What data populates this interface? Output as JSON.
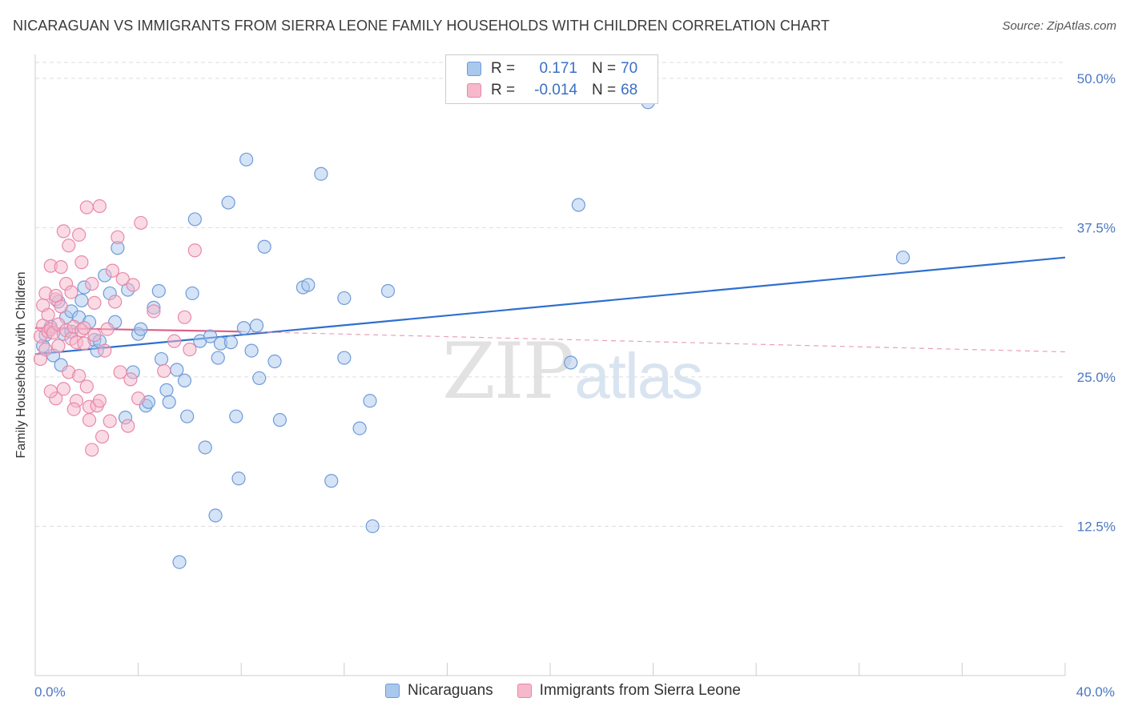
{
  "title": "NICARAGUAN VS IMMIGRANTS FROM SIERRA LEONE FAMILY HOUSEHOLDS WITH CHILDREN CORRELATION CHART",
  "source": "Source: ZipAtlas.com",
  "watermark": {
    "zip": "ZIP",
    "atlas": "atlas"
  },
  "legend": {
    "rows": [
      {
        "r_label": "R =",
        "r_value": "0.171",
        "n_label": "N =",
        "n_value": "70",
        "color": "#a9c8ee",
        "border": "#6f9bd8"
      },
      {
        "r_label": "R =",
        "r_value": "-0.014",
        "n_label": "N =",
        "n_value": "68",
        "color": "#f6b8cb",
        "border": "#e889a8"
      }
    ]
  },
  "bottom_legend": [
    {
      "label": "Nicaraguans",
      "color": "#a9c8ee",
      "border": "#6f9bd8"
    },
    {
      "label": "Immigrants from Sierra Leone",
      "color": "#f6b8cb",
      "border": "#e889a8"
    }
  ],
  "chart_data": {
    "type": "scatter",
    "title": "NICARAGUAN VS IMMIGRANTS FROM SIERRA LEONE FAMILY HOUSEHOLDS WITH CHILDREN CORRELATION CHART",
    "xlabel": "",
    "ylabel": "Family Households with Children",
    "xlim": [
      0,
      40
    ],
    "ylim": [
      0,
      52
    ],
    "x_tick_labels": [
      {
        "value": 0,
        "label": "0.0%"
      },
      {
        "value": 40,
        "label": "40.0%"
      }
    ],
    "y_tick_labels": [
      {
        "value": 12.5,
        "label": "12.5%"
      },
      {
        "value": 25.0,
        "label": "25.0%"
      },
      {
        "value": 37.5,
        "label": "37.5%"
      },
      {
        "value": 50.0,
        "label": "50.0%"
      }
    ],
    "grid": true,
    "series": [
      {
        "name": "Nicaraguans",
        "color": "#a9c8ee",
        "stroke": "#6f9bd8",
        "trend": {
          "x": [
            0,
            40
          ],
          "y": [
            26.9,
            35.0
          ],
          "color": "#2f6fcf",
          "dashed": false
        },
        "points": [
          {
            "x": 0.3,
            "y": 27.6
          },
          {
            "x": 0.4,
            "y": 28.5
          },
          {
            "x": 0.6,
            "y": 29.2
          },
          {
            "x": 0.7,
            "y": 26.8
          },
          {
            "x": 0.9,
            "y": 31.3
          },
          {
            "x": 1.0,
            "y": 26.0
          },
          {
            "x": 1.1,
            "y": 28.6
          },
          {
            "x": 1.2,
            "y": 30.0
          },
          {
            "x": 1.4,
            "y": 30.5
          },
          {
            "x": 1.4,
            "y": 28.8
          },
          {
            "x": 1.7,
            "y": 30.0
          },
          {
            "x": 1.8,
            "y": 31.4
          },
          {
            "x": 1.9,
            "y": 32.5
          },
          {
            "x": 2.1,
            "y": 29.6
          },
          {
            "x": 2.3,
            "y": 28.1
          },
          {
            "x": 2.4,
            "y": 27.2
          },
          {
            "x": 2.5,
            "y": 28.0
          },
          {
            "x": 2.7,
            "y": 33.5
          },
          {
            "x": 2.9,
            "y": 32.0
          },
          {
            "x": 3.1,
            "y": 29.6
          },
          {
            "x": 3.2,
            "y": 35.8
          },
          {
            "x": 3.5,
            "y": 21.6
          },
          {
            "x": 3.6,
            "y": 32.3
          },
          {
            "x": 3.8,
            "y": 25.4
          },
          {
            "x": 4.0,
            "y": 28.6
          },
          {
            "x": 4.1,
            "y": 29.0
          },
          {
            "x": 4.3,
            "y": 22.6
          },
          {
            "x": 4.4,
            "y": 22.9
          },
          {
            "x": 4.6,
            "y": 30.8
          },
          {
            "x": 4.8,
            "y": 32.2
          },
          {
            "x": 4.9,
            "y": 26.5
          },
          {
            "x": 5.1,
            "y": 23.9
          },
          {
            "x": 5.2,
            "y": 22.9
          },
          {
            "x": 5.5,
            "y": 25.6
          },
          {
            "x": 5.6,
            "y": 9.5
          },
          {
            "x": 5.8,
            "y": 24.7
          },
          {
            "x": 5.9,
            "y": 21.7
          },
          {
            "x": 6.1,
            "y": 32.0
          },
          {
            "x": 6.2,
            "y": 38.2
          },
          {
            "x": 6.4,
            "y": 28.0
          },
          {
            "x": 6.6,
            "y": 19.1
          },
          {
            "x": 6.8,
            "y": 28.4
          },
          {
            "x": 7.0,
            "y": 13.4
          },
          {
            "x": 7.1,
            "y": 26.6
          },
          {
            "x": 7.2,
            "y": 27.8
          },
          {
            "x": 7.5,
            "y": 39.6
          },
          {
            "x": 7.6,
            "y": 27.9
          },
          {
            "x": 7.8,
            "y": 21.7
          },
          {
            "x": 7.9,
            "y": 16.5
          },
          {
            "x": 8.1,
            "y": 29.1
          },
          {
            "x": 8.2,
            "y": 43.2
          },
          {
            "x": 8.4,
            "y": 27.2
          },
          {
            "x": 8.6,
            "y": 29.3
          },
          {
            "x": 8.7,
            "y": 24.9
          },
          {
            "x": 8.9,
            "y": 35.9
          },
          {
            "x": 9.3,
            "y": 26.3
          },
          {
            "x": 9.5,
            "y": 21.4
          },
          {
            "x": 10.4,
            "y": 32.5
          },
          {
            "x": 10.6,
            "y": 32.7
          },
          {
            "x": 11.1,
            "y": 42.0
          },
          {
            "x": 11.5,
            "y": 16.3
          },
          {
            "x": 12.0,
            "y": 26.6
          },
          {
            "x": 12.0,
            "y": 31.6
          },
          {
            "x": 12.6,
            "y": 20.7
          },
          {
            "x": 13.1,
            "y": 12.5
          },
          {
            "x": 13.0,
            "y": 23.0
          },
          {
            "x": 13.7,
            "y": 32.2
          },
          {
            "x": 20.8,
            "y": 26.2
          },
          {
            "x": 21.1,
            "y": 39.4
          },
          {
            "x": 33.7,
            "y": 35.0
          }
        ]
      },
      {
        "name": "Immigrants from Sierra Leone",
        "color": "#f6b8cb",
        "stroke": "#e889a8",
        "trend": {
          "x": [
            0,
            8
          ],
          "y": [
            29.1,
            28.8
          ],
          "color": "#e06088",
          "dashed": false
        },
        "trend_extension": {
          "x": [
            8,
            40
          ],
          "y": [
            28.8,
            27.1
          ],
          "color": "#e9a0b6",
          "dashed": true
        },
        "points": [
          {
            "x": 0.2,
            "y": 26.5
          },
          {
            "x": 0.2,
            "y": 28.4
          },
          {
            "x": 0.3,
            "y": 29.3
          },
          {
            "x": 0.3,
            "y": 31.0
          },
          {
            "x": 0.4,
            "y": 32.0
          },
          {
            "x": 0.4,
            "y": 27.3
          },
          {
            "x": 0.5,
            "y": 28.8
          },
          {
            "x": 0.5,
            "y": 30.2
          },
          {
            "x": 0.6,
            "y": 34.3
          },
          {
            "x": 0.6,
            "y": 29.0
          },
          {
            "x": 0.7,
            "y": 28.7
          },
          {
            "x": 0.8,
            "y": 31.5
          },
          {
            "x": 0.8,
            "y": 23.2
          },
          {
            "x": 0.9,
            "y": 29.4
          },
          {
            "x": 0.9,
            "y": 27.6
          },
          {
            "x": 1.0,
            "y": 34.2
          },
          {
            "x": 1.0,
            "y": 30.9
          },
          {
            "x": 1.1,
            "y": 37.2
          },
          {
            "x": 1.1,
            "y": 24.0
          },
          {
            "x": 1.2,
            "y": 28.9
          },
          {
            "x": 1.2,
            "y": 32.8
          },
          {
            "x": 1.3,
            "y": 36.0
          },
          {
            "x": 1.3,
            "y": 25.4
          },
          {
            "x": 1.4,
            "y": 28.2
          },
          {
            "x": 1.4,
            "y": 32.1
          },
          {
            "x": 1.5,
            "y": 29.2
          },
          {
            "x": 1.6,
            "y": 23.0
          },
          {
            "x": 1.6,
            "y": 27.9
          },
          {
            "x": 1.7,
            "y": 25.1
          },
          {
            "x": 1.7,
            "y": 36.9
          },
          {
            "x": 1.8,
            "y": 28.9
          },
          {
            "x": 1.8,
            "y": 34.6
          },
          {
            "x": 1.9,
            "y": 29.1
          },
          {
            "x": 2.0,
            "y": 39.2
          },
          {
            "x": 2.0,
            "y": 24.2
          },
          {
            "x": 2.1,
            "y": 22.5
          },
          {
            "x": 2.1,
            "y": 21.4
          },
          {
            "x": 2.2,
            "y": 32.8
          },
          {
            "x": 2.2,
            "y": 18.9
          },
          {
            "x": 2.3,
            "y": 28.5
          },
          {
            "x": 2.3,
            "y": 31.2
          },
          {
            "x": 2.4,
            "y": 22.6
          },
          {
            "x": 2.5,
            "y": 39.3
          },
          {
            "x": 2.5,
            "y": 23.0
          },
          {
            "x": 2.6,
            "y": 20.0
          },
          {
            "x": 2.7,
            "y": 27.2
          },
          {
            "x": 2.8,
            "y": 29.0
          },
          {
            "x": 2.9,
            "y": 21.3
          },
          {
            "x": 3.0,
            "y": 33.9
          },
          {
            "x": 3.1,
            "y": 31.3
          },
          {
            "x": 3.2,
            "y": 36.7
          },
          {
            "x": 3.3,
            "y": 25.4
          },
          {
            "x": 3.4,
            "y": 33.2
          },
          {
            "x": 3.6,
            "y": 20.9
          },
          {
            "x": 3.7,
            "y": 24.8
          },
          {
            "x": 3.8,
            "y": 32.7
          },
          {
            "x": 4.0,
            "y": 23.2
          },
          {
            "x": 4.1,
            "y": 37.9
          },
          {
            "x": 4.6,
            "y": 30.5
          },
          {
            "x": 5.0,
            "y": 25.5
          },
          {
            "x": 5.4,
            "y": 28.0
          },
          {
            "x": 5.8,
            "y": 30.0
          },
          {
            "x": 6.0,
            "y": 27.3
          },
          {
            "x": 6.2,
            "y": 35.6
          },
          {
            "x": 0.8,
            "y": 31.8
          },
          {
            "x": 1.9,
            "y": 27.8
          },
          {
            "x": 1.5,
            "y": 22.3
          },
          {
            "x": 0.6,
            "y": 23.8
          }
        ]
      }
    ],
    "extra_points": [
      {
        "series": "Nicaraguans",
        "x": 23.8,
        "y": 48.0
      }
    ]
  }
}
